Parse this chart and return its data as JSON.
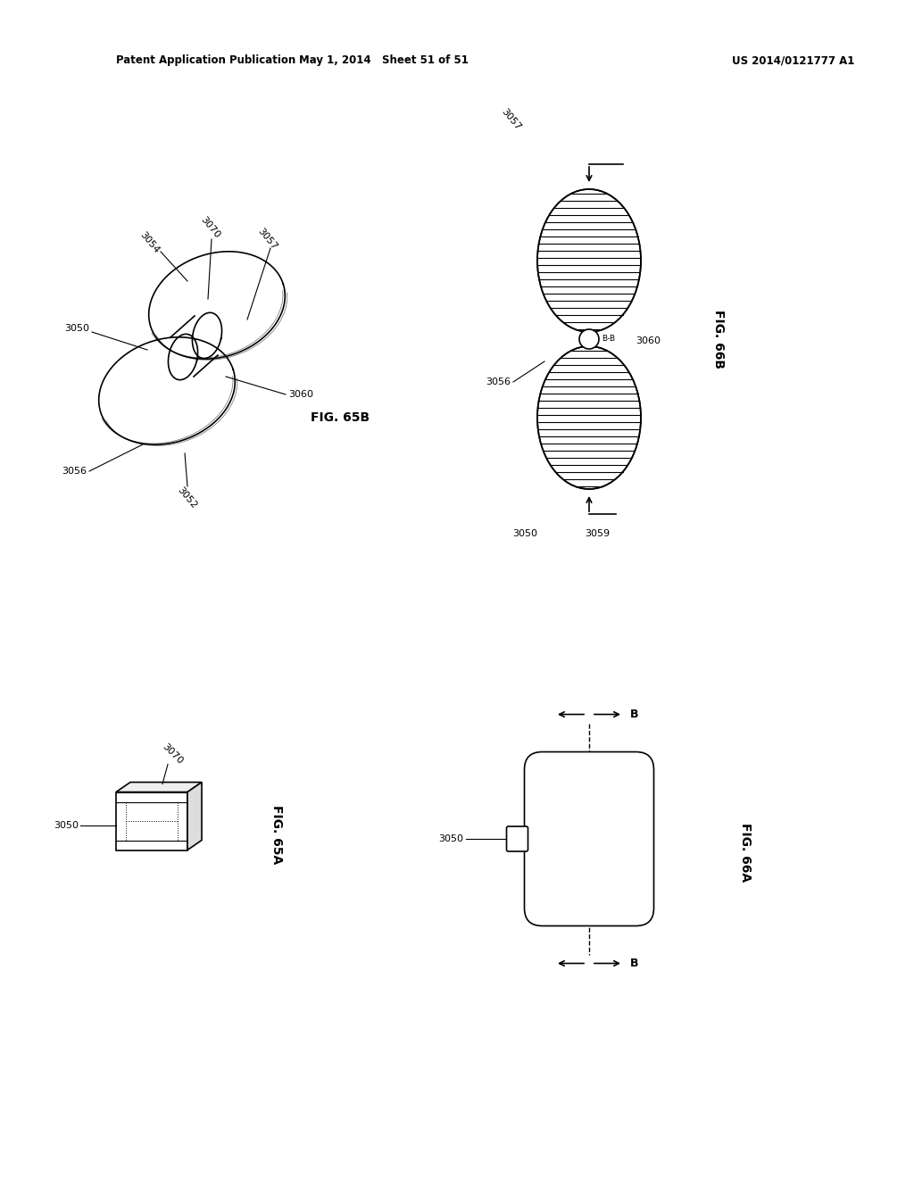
{
  "header_left": "Patent Application Publication",
  "header_mid": "May 1, 2014   Sheet 51 of 51",
  "header_right": "US 2014/0121777 A1",
  "fig65b_label": "FIG. 65B",
  "fig66b_label": "FIG. 66B",
  "fig65a_label": "FIG. 65A",
  "fig66a_label": "FIG. 66A",
  "bg_color": "#ffffff",
  "line_color": "#000000"
}
